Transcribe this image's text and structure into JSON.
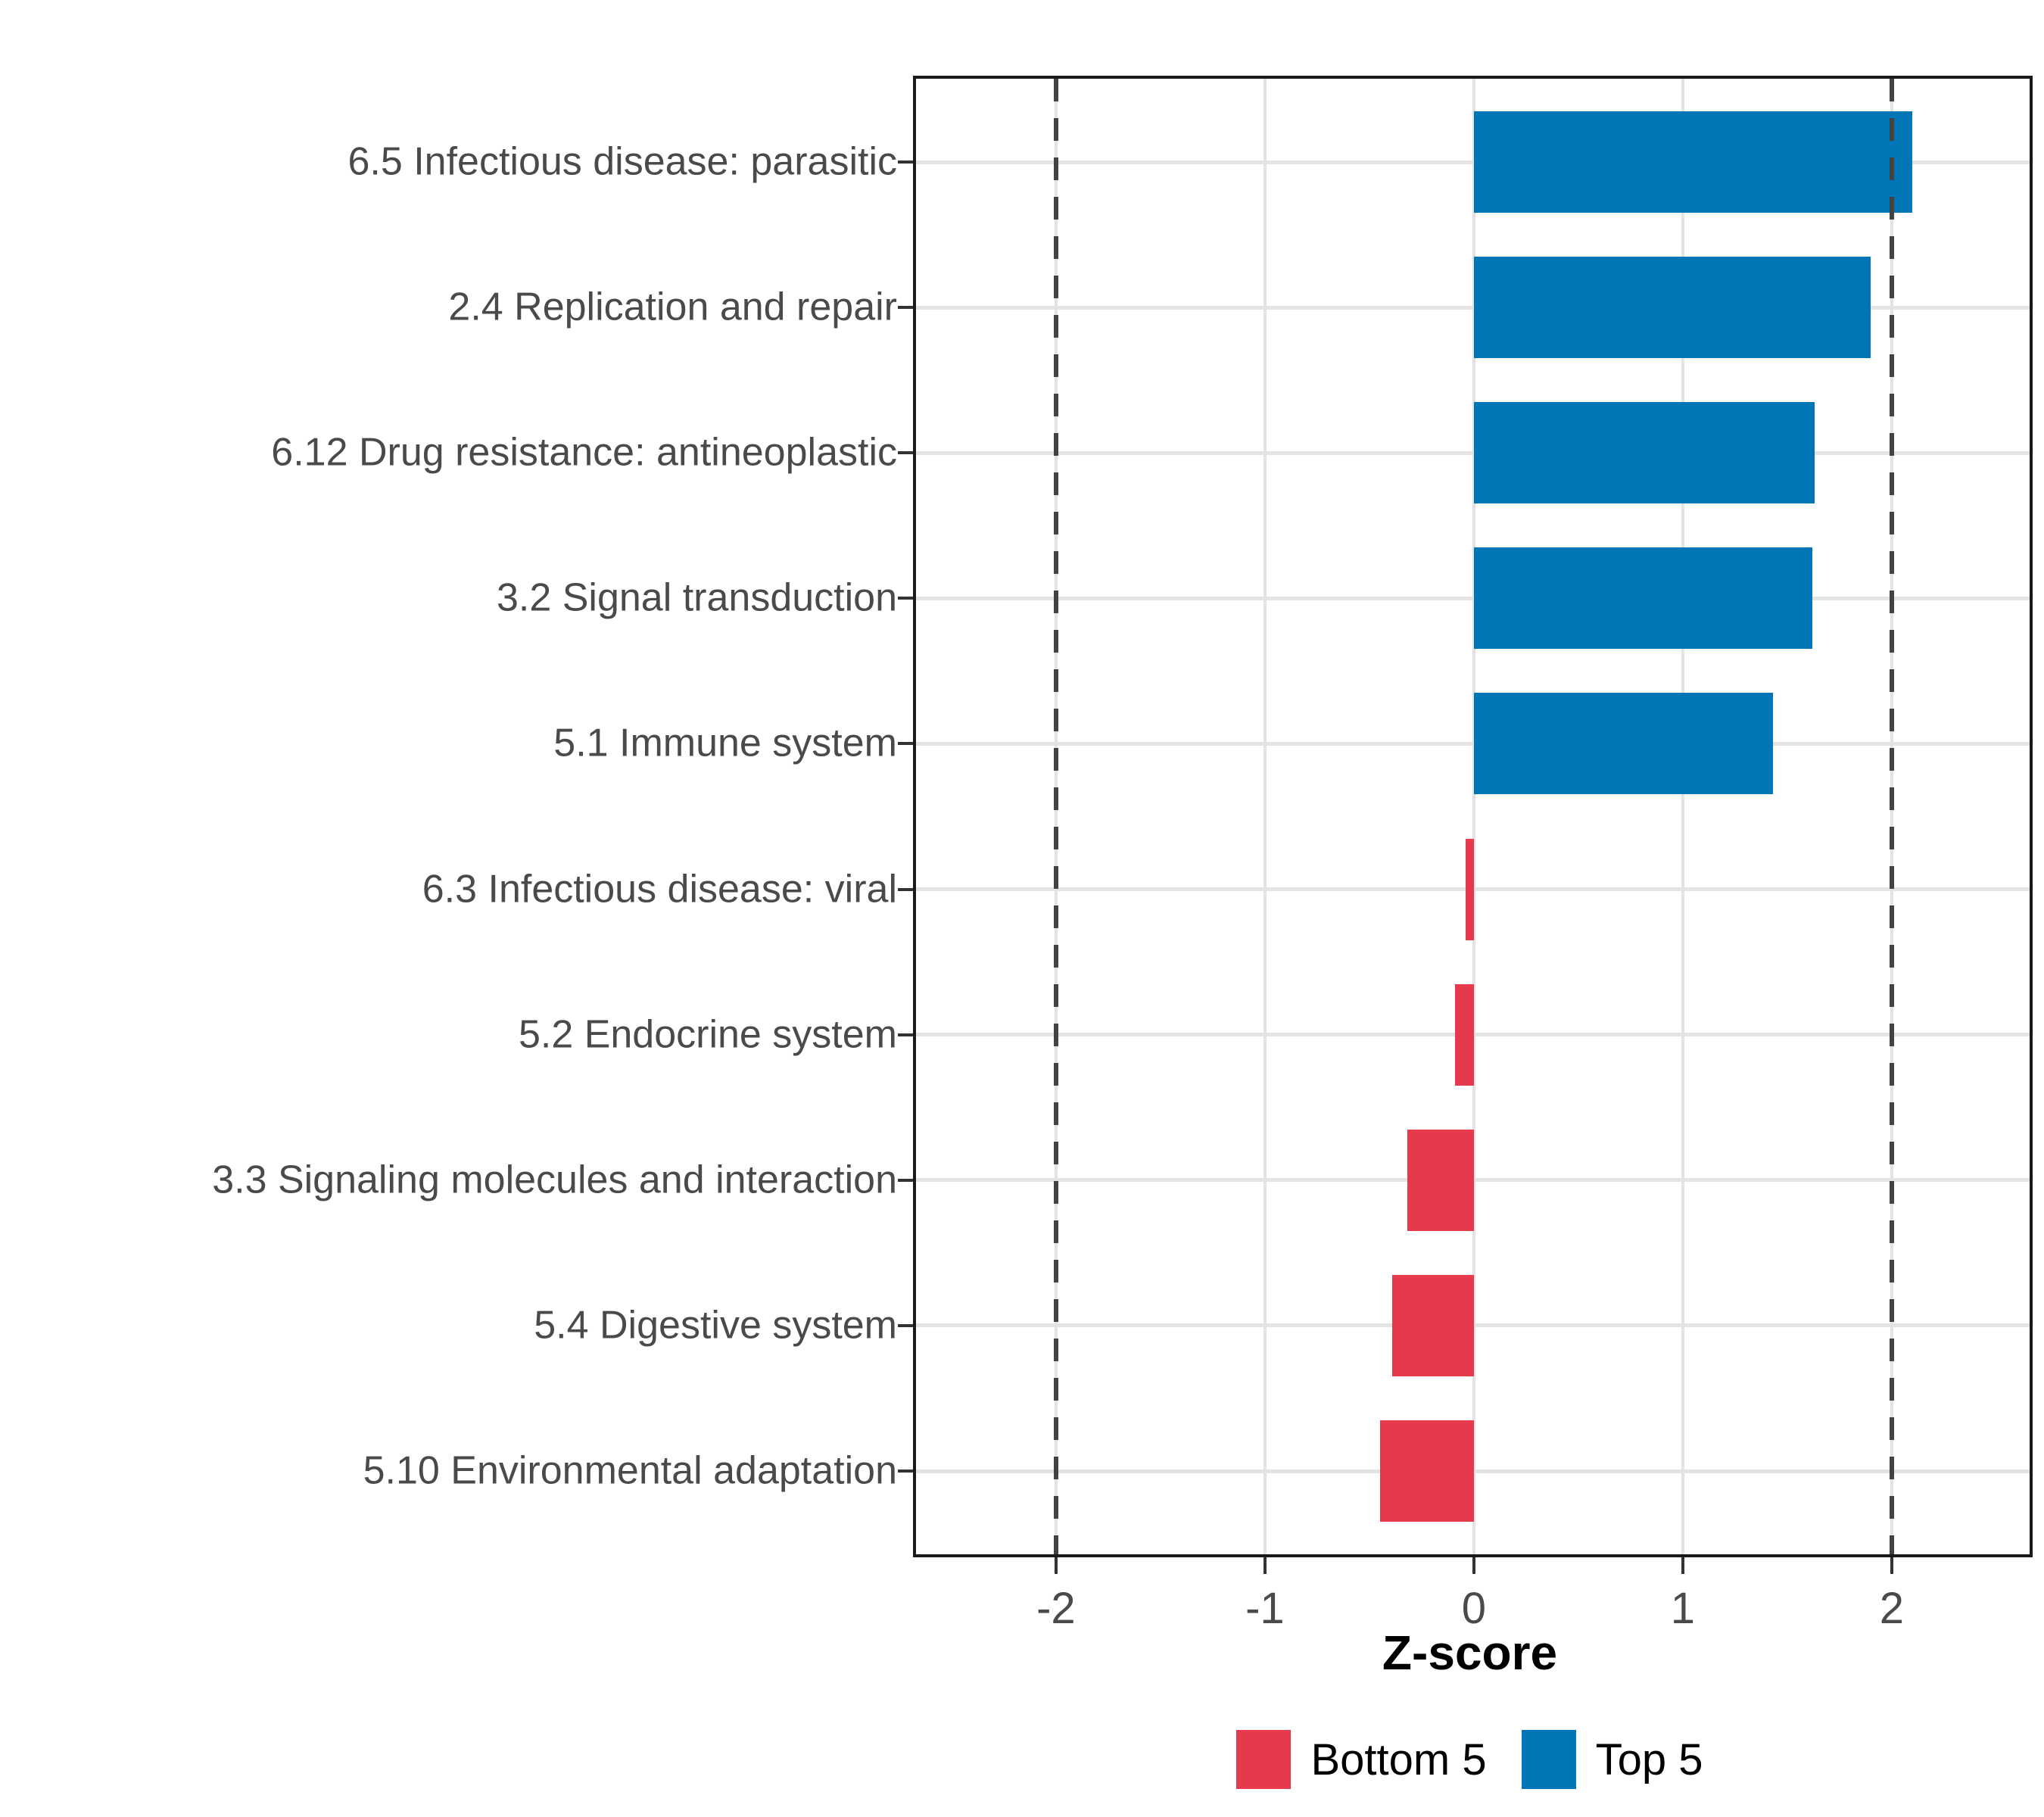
{
  "chart_data": {
    "type": "bar",
    "orientation": "horizontal",
    "title": "",
    "xlabel": "Z-score",
    "ylabel": "",
    "xlim": [
      -2.67,
      2.66
    ],
    "x_ticks": [
      -2,
      -1,
      0,
      1,
      2
    ],
    "reference_lines": [
      -2,
      2
    ],
    "grid": true,
    "legend_position": "bottom",
    "categories": [
      "6.5 Infectious disease: parasitic",
      "2.4 Replication and repair",
      "6.12 Drug resistance: antineoplastic",
      "3.2 Signal transduction",
      "5.1 Immune system",
      "6.3 Infectious disease: viral",
      "5.2 Endocrine system",
      "3.3 Signaling molecules and interaction",
      "5.4 Digestive system",
      "5.10 Environmental adaptation"
    ],
    "series": [
      {
        "name": "Z-score",
        "values": [
          2.1,
          1.9,
          1.63,
          1.62,
          1.43,
          -0.04,
          -0.09,
          -0.32,
          -0.39,
          -0.45
        ]
      }
    ],
    "point_groups": [
      "Top 5",
      "Top 5",
      "Top 5",
      "Top 5",
      "Top 5",
      "Bottom 5",
      "Bottom 5",
      "Bottom 5",
      "Bottom 5",
      "Bottom 5"
    ],
    "legend": [
      {
        "label": "Bottom 5",
        "color": "#e43a4b"
      },
      {
        "label": "Top 5",
        "color": "#0076b6"
      }
    ]
  },
  "colors": {
    "bar_positive": "#0076b6",
    "bar_negative": "#e43a4b",
    "grid": "#e3e3e3",
    "panel_border": "#1a1a1a",
    "axis_text": "#4a4a4a",
    "tick_mark": "#333333",
    "reference_line": "#424242",
    "background": "#ffffff",
    "axis_title_text": "#000000",
    "legend_text": "#000000"
  }
}
